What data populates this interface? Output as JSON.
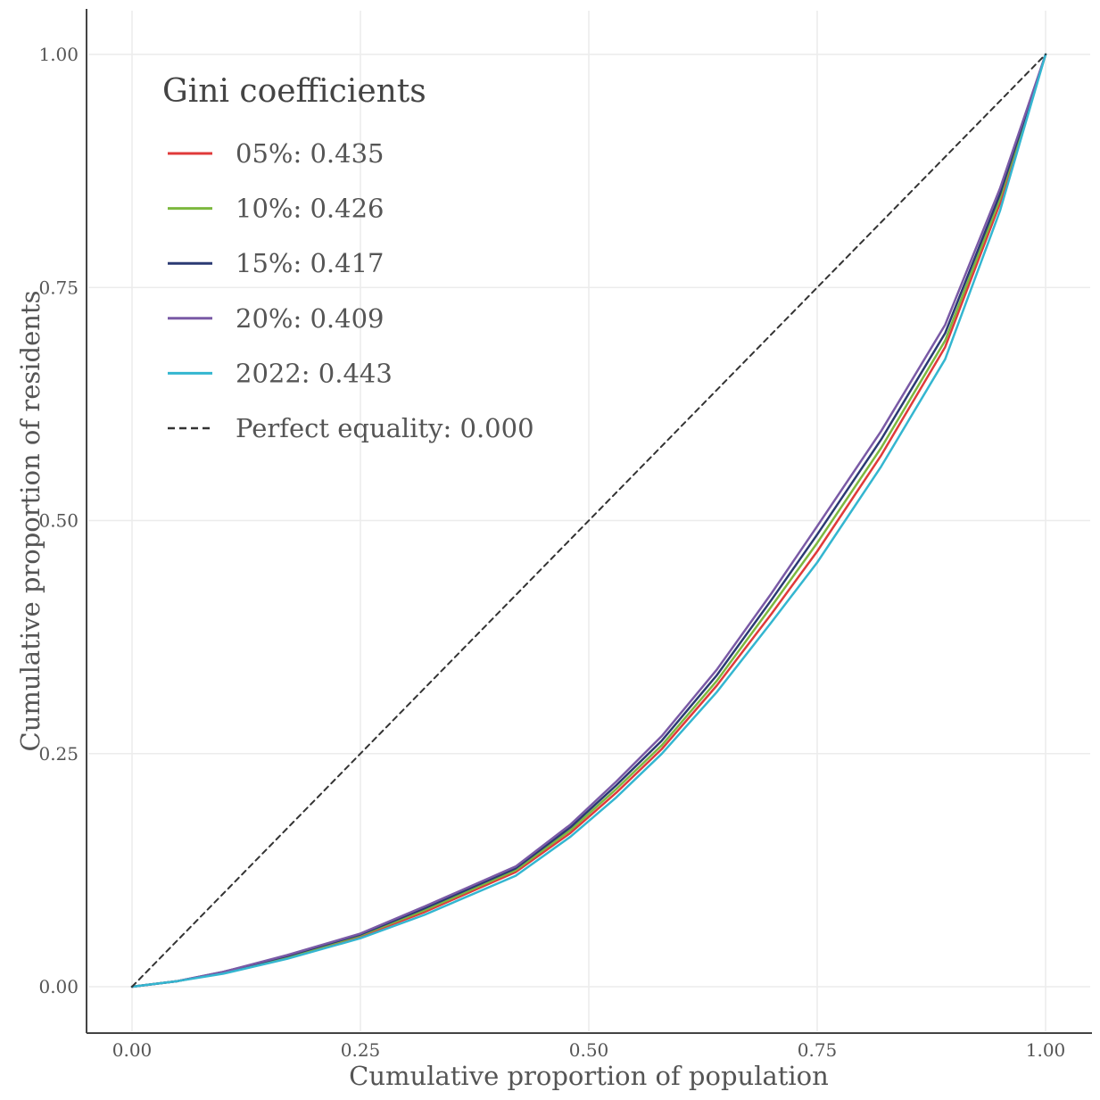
{
  "chart_data": {
    "type": "line",
    "title": "",
    "xlabel": "Cumulative proportion of population",
    "ylabel": "Cumulative proportion of residents",
    "xlim": [
      0,
      1
    ],
    "ylim": [
      0,
      1
    ],
    "x_ticks": [
      "0.00",
      "0.25",
      "0.50",
      "0.75",
      "1.00"
    ],
    "y_ticks": [
      "0.00",
      "0.25",
      "0.50",
      "0.75",
      "1.00"
    ],
    "grid": true,
    "legend": {
      "title": "Gini coefficients",
      "position": "top-left",
      "entries": [
        {
          "label": "05%: 0.435",
          "color": "#e03a3a",
          "dash": "solid"
        },
        {
          "label": "10%: 0.426",
          "color": "#7cb83e",
          "dash": "solid"
        },
        {
          "label": "15%: 0.417",
          "color": "#2b3a73",
          "dash": "solid"
        },
        {
          "label": "20%: 0.409",
          "color": "#7a5aa6",
          "dash": "solid"
        },
        {
          "label": "2022: 0.443",
          "color": "#34b6d0",
          "dash": "solid"
        },
        {
          "label": "Perfect equality: 0.000",
          "color": "#333333",
          "dash": "dashed"
        }
      ]
    },
    "series": [
      {
        "name": "05%: 0.435",
        "color": "#e03a3a",
        "x": [
          0,
          0.05,
          0.1,
          0.17,
          0.25,
          0.32,
          0.42,
          0.48,
          0.53,
          0.58,
          0.64,
          0.7,
          0.75,
          0.82,
          0.89,
          0.95,
          1
        ],
        "y": [
          0,
          0.006,
          0.015,
          0.031,
          0.054,
          0.08,
          0.123,
          0.165,
          0.208,
          0.255,
          0.323,
          0.4,
          0.467,
          0.57,
          0.686,
          0.84,
          1
        ]
      },
      {
        "name": "10%: 0.426",
        "color": "#7cb83e",
        "x": [
          0,
          0.05,
          0.1,
          0.17,
          0.25,
          0.32,
          0.42,
          0.48,
          0.53,
          0.58,
          0.64,
          0.7,
          0.75,
          0.82,
          0.89,
          0.95,
          1
        ],
        "y": [
          0,
          0.006,
          0.015,
          0.032,
          0.055,
          0.082,
          0.125,
          0.168,
          0.212,
          0.259,
          0.328,
          0.408,
          0.476,
          0.578,
          0.693,
          0.845,
          1
        ]
      },
      {
        "name": "15%: 0.417",
        "color": "#2b3a73",
        "x": [
          0,
          0.05,
          0.1,
          0.17,
          0.25,
          0.32,
          0.42,
          0.48,
          0.53,
          0.58,
          0.64,
          0.7,
          0.75,
          0.82,
          0.89,
          0.95,
          1
        ],
        "y": [
          0,
          0.006,
          0.016,
          0.033,
          0.056,
          0.084,
          0.127,
          0.171,
          0.216,
          0.264,
          0.334,
          0.415,
          0.485,
          0.587,
          0.701,
          0.85,
          1
        ]
      },
      {
        "name": "20%: 0.409",
        "color": "#7a5aa6",
        "x": [
          0,
          0.05,
          0.1,
          0.17,
          0.25,
          0.32,
          0.42,
          0.48,
          0.53,
          0.58,
          0.64,
          0.7,
          0.75,
          0.82,
          0.89,
          0.95,
          1
        ],
        "y": [
          0,
          0.006,
          0.016,
          0.034,
          0.057,
          0.086,
          0.129,
          0.174,
          0.22,
          0.269,
          0.34,
          0.422,
          0.494,
          0.596,
          0.71,
          0.856,
          1
        ]
      },
      {
        "name": "2022: 0.443",
        "color": "#34b6d0",
        "x": [
          0,
          0.05,
          0.1,
          0.17,
          0.25,
          0.32,
          0.42,
          0.48,
          0.53,
          0.58,
          0.64,
          0.7,
          0.75,
          0.82,
          0.89,
          0.95,
          1
        ],
        "y": [
          0,
          0.006,
          0.014,
          0.03,
          0.052,
          0.077,
          0.119,
          0.161,
          0.203,
          0.25,
          0.316,
          0.391,
          0.455,
          0.558,
          0.673,
          0.832,
          1
        ]
      },
      {
        "name": "Perfect equality: 0.000",
        "color": "#333333",
        "dash": "dashed",
        "x": [
          0,
          1
        ],
        "y": [
          0,
          1
        ]
      }
    ]
  }
}
